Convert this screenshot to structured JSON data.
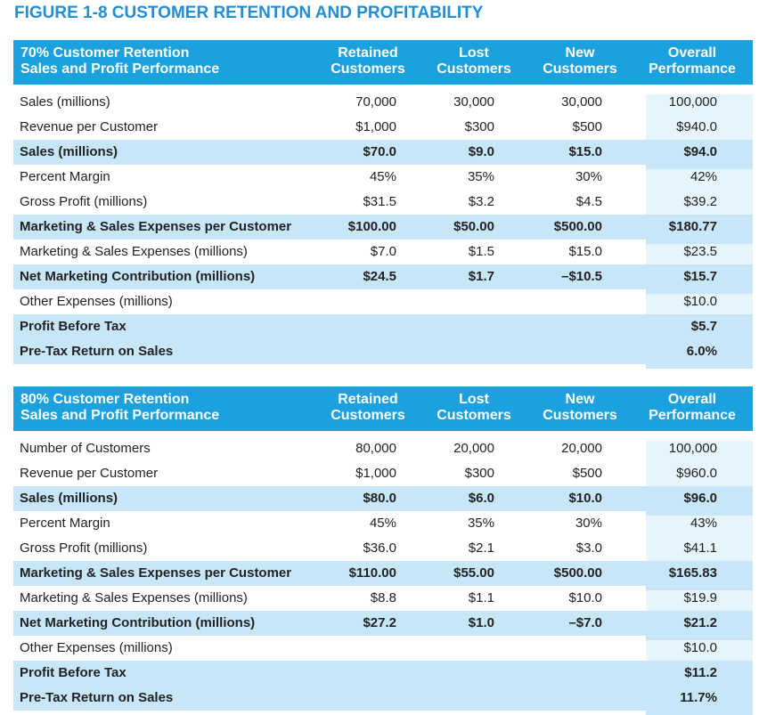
{
  "title": "FIGURE 1-8  CUSTOMER RETENTION AND PROFITABILITY",
  "tables": [
    {
      "header": [
        "70% Customer Retention\nSales and Profit Performance",
        "Retained\nCustomers",
        "Lost\nCustomers",
        "New\nCustomers",
        "Overall\nPerformance"
      ],
      "rows": [
        {
          "label": "Sales (millions)",
          "values": [
            "70,000",
            "30,000",
            "30,000",
            "100,000"
          ]
        },
        {
          "label": "Revenue per Customer",
          "values": [
            "$1,000",
            "$300",
            "$500",
            "$940.0"
          ]
        },
        {
          "label": "Sales (millions)",
          "values": [
            "$70.0",
            "$9.0",
            "$15.0",
            "$94.0"
          ],
          "bold": true
        },
        {
          "label": "Percent Margin",
          "values": [
            "45%",
            "35%",
            "30%",
            "42%"
          ]
        },
        {
          "label": "Gross Profit (millions)",
          "values": [
            "$31.5",
            "$3.2",
            "$4.5",
            "$39.2"
          ]
        },
        {
          "label": "Marketing & Sales Expenses per Customer",
          "values": [
            "$100.00",
            "$50.00",
            "$500.00",
            "$180.77"
          ],
          "bold": true
        },
        {
          "label": "Marketing & Sales Expenses (millions)",
          "values": [
            "$7.0",
            "$1.5",
            "$15.0",
            "$23.5"
          ]
        },
        {
          "label": "Net Marketing Contribution (millions)",
          "values": [
            "$24.5",
            "$1.7",
            "–$10.5",
            "$15.7"
          ],
          "bold": true
        },
        {
          "label": "Other Expenses (millions)",
          "values": [
            null,
            null,
            null,
            "$10.0"
          ]
        },
        {
          "label": "Profit Before Tax",
          "values": [
            null,
            null,
            null,
            "$5.7"
          ],
          "bold": true
        },
        {
          "label": "Pre-Tax Return on Sales",
          "values": [
            null,
            null,
            null,
            "6.0%"
          ],
          "bold": true
        }
      ]
    },
    {
      "header": [
        "80% Customer Retention\nSales and Profit Performance",
        "Retained\nCustomers",
        "Lost\nCustomers",
        "New\nCustomers",
        "Overall\nPerformance"
      ],
      "rows": [
        {
          "label": "Number of Customers",
          "values": [
            "80,000",
            "20,000",
            "20,000",
            "100,000"
          ]
        },
        {
          "label": "Revenue per Customer",
          "values": [
            "$1,000",
            "$300",
            "$500",
            "$960.0"
          ]
        },
        {
          "label": "Sales (millions)",
          "values": [
            "$80.0",
            "$6.0",
            "$10.0",
            "$96.0"
          ],
          "bold": true
        },
        {
          "label": "Percent Margin",
          "values": [
            "45%",
            "35%",
            "30%",
            "43%"
          ]
        },
        {
          "label": "Gross Profit (millions)",
          "values": [
            "$36.0",
            "$2.1",
            "$3.0",
            "$41.1"
          ]
        },
        {
          "label": "Marketing & Sales Expenses per Customer",
          "values": [
            "$110.00",
            "$55.00",
            "$500.00",
            "$165.83"
          ],
          "bold": true
        },
        {
          "label": "Marketing & Sales Expenses (millions)",
          "values": [
            "$8.8",
            "$1.1",
            "$10.0",
            "$19.9"
          ]
        },
        {
          "label": "Net Marketing Contribution (millions)",
          "values": [
            "$27.2",
            "$1.0",
            "–$7.0",
            "$21.2"
          ],
          "bold": true
        },
        {
          "label": "Other Expenses (millions)",
          "values": [
            null,
            null,
            null,
            "$10.0"
          ]
        },
        {
          "label": "Profit Before Tax",
          "values": [
            null,
            null,
            null,
            "$11.2"
          ],
          "bold": true
        },
        {
          "label": "Pre-Tax Return on Sales",
          "values": [
            null,
            null,
            null,
            "11.7%"
          ],
          "bold": true
        }
      ]
    }
  ]
}
